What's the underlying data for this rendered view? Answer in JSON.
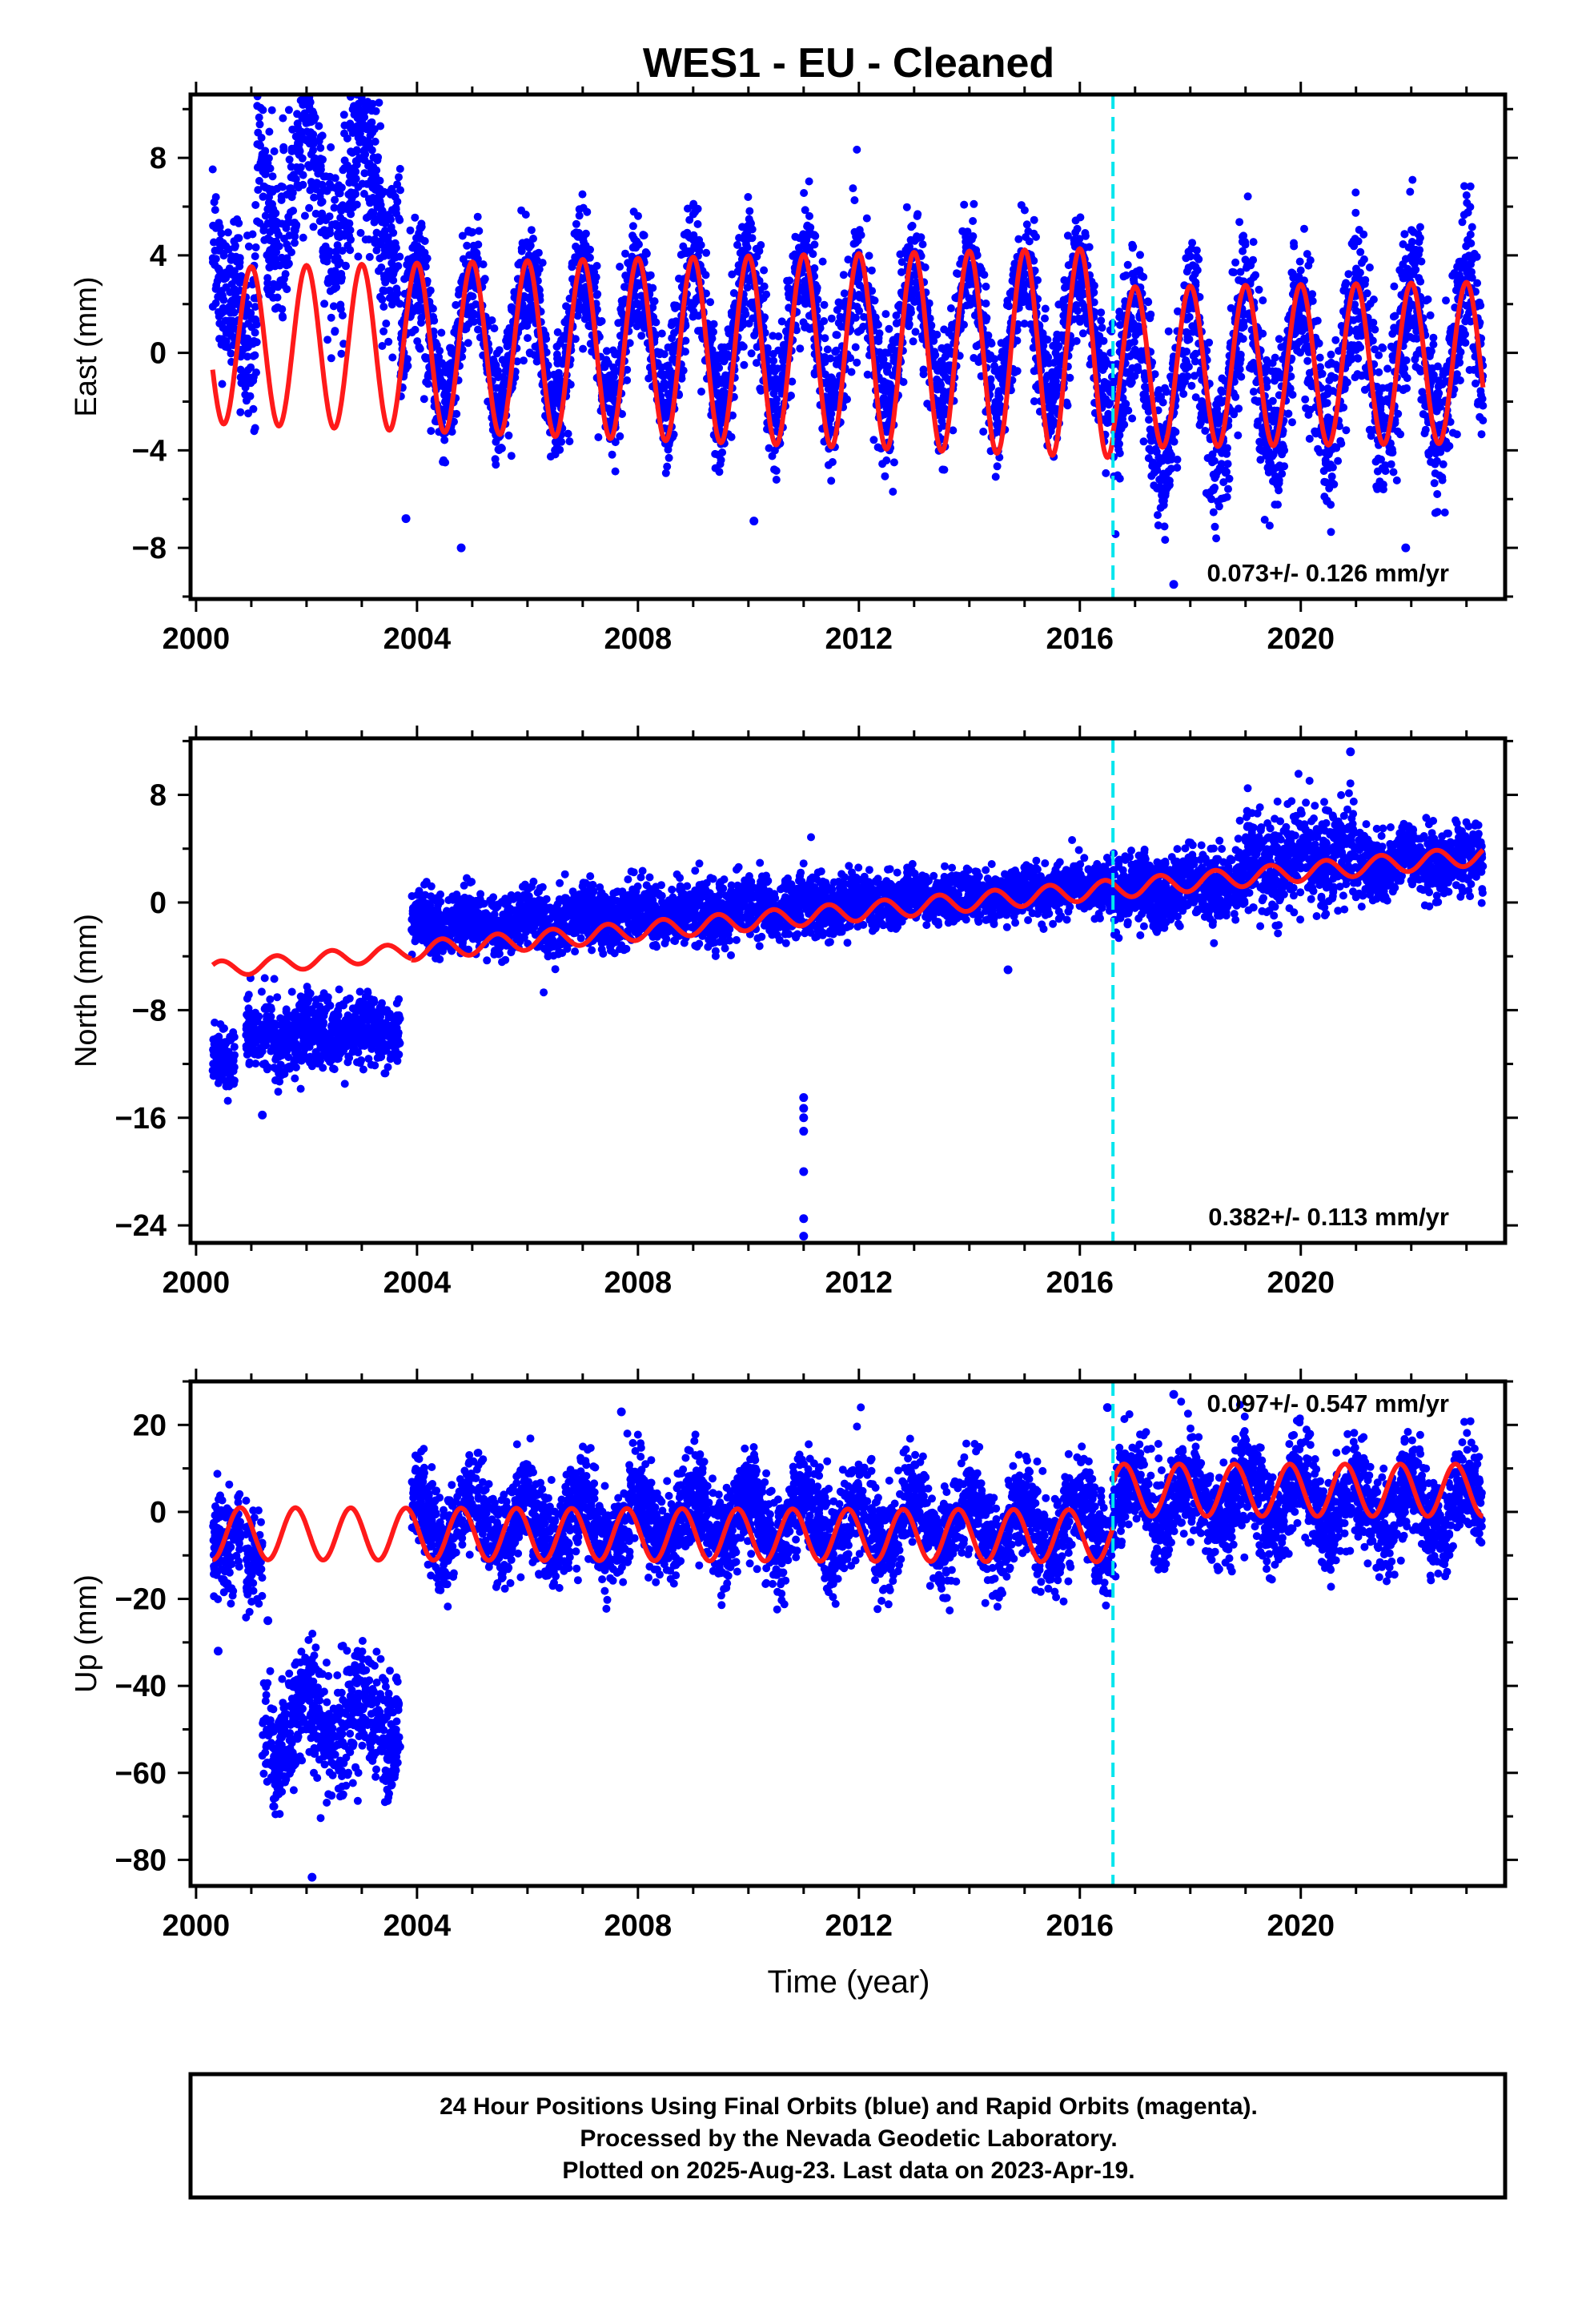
{
  "title": "WES1  - EU - Cleaned",
  "colors": {
    "points": "#0000ff",
    "model": "#ff1a1a",
    "event": "#00e5ee",
    "axis": "#000000"
  },
  "chart_data": [
    {
      "type": "scatter",
      "ylabel": "East (mm)",
      "xlim": [
        1999.9,
        2023.7
      ],
      "ylim": [
        -10.1,
        10.6
      ],
      "xticks": [
        2000,
        2004,
        2008,
        2012,
        2016,
        2020
      ],
      "yticks": [
        -8,
        -4,
        0,
        4,
        8
      ],
      "event_year": 2016.6,
      "rate_label": "0.073+/- 0.126 mm/yr",
      "rate_position": "bottom-right",
      "model": {
        "segments": [
          {
            "from": 2000.3,
            "to": 2016.6,
            "offset": [
              0.3,
              0.0
            ],
            "amp": [
              3.2,
              4.3
            ],
            "phase": 0.75
          },
          {
            "from": 2016.6,
            "to": 2023.3,
            "offset": [
              -0.6,
              -0.4
            ],
            "amp": [
              3.3,
              3.3
            ],
            "phase": 0.75
          }
        ],
        "note": "annual sinusoid"
      },
      "scatter_segments": [
        {
          "from": 2000.3,
          "to": 2000.8,
          "base": [
            5.0,
            3.0
          ],
          "noise": 1.5,
          "seasonal": 2.0
        },
        {
          "from": 2000.8,
          "to": 2001.1,
          "base": [
            0.0,
            0.0
          ],
          "noise": 1.8,
          "seasonal": 1.0
        },
        {
          "from": 2001.1,
          "to": 2003.7,
          "base": [
            6.5,
            6.5
          ],
          "noise": 1.7,
          "seasonal": 2.5
        },
        {
          "from": 2003.7,
          "to": 2016.6,
          "base": [
            0.5,
            0.8
          ],
          "noise": 1.3,
          "seasonal": 2.8
        },
        {
          "from": 2016.6,
          "to": 2023.3,
          "base": [
            -1.5,
            0.0
          ],
          "noise": 1.6,
          "seasonal": 3.0
        }
      ],
      "outliers": [
        [
          2004.8,
          -8.0
        ],
        [
          2017.7,
          -9.5
        ],
        [
          2021.9,
          -8.0
        ],
        [
          2003.8,
          -6.8
        ],
        [
          2010.1,
          -6.9
        ]
      ]
    },
    {
      "type": "scatter",
      "ylabel": "North (mm)",
      "xlim": [
        1999.9,
        2023.7
      ],
      "ylim": [
        -25.3,
        12.2
      ],
      "xticks": [
        2000,
        2004,
        2008,
        2012,
        2016,
        2020
      ],
      "yticks": [
        -24,
        -16,
        -8,
        0,
        8
      ],
      "event_year": 2016.6,
      "rate_label": "0.382+/- 0.113 mm/yr",
      "rate_position": "bottom-right",
      "model": {
        "segments": [
          {
            "from": 2000.3,
            "to": 2003.9,
            "offset": [
              -5.0,
              -3.6
            ],
            "amp": [
              0.6,
              0.6
            ],
            "phase": 0.2
          },
          {
            "from": 2003.9,
            "to": 2016.6,
            "offset": [
              -3.6,
              1.0
            ],
            "amp": [
              0.7,
              0.7
            ],
            "phase": 0.2
          },
          {
            "from": 2016.6,
            "to": 2023.3,
            "offset": [
              1.0,
              3.5
            ],
            "amp": [
              0.7,
              0.7
            ],
            "phase": 0.2
          }
        ],
        "note": "linear trend plus small annual term"
      },
      "scatter_segments": [
        {
          "from": 2000.3,
          "to": 2000.7,
          "base": [
            -11.5,
            -11.5
          ],
          "noise": 1.1,
          "seasonal": 0.3
        },
        {
          "from": 2000.9,
          "to": 2003.7,
          "base": [
            -10.0,
            -9.5
          ],
          "noise": 1.3,
          "seasonal": 0.5
        },
        {
          "from": 2003.9,
          "to": 2012.0,
          "base": [
            -1.8,
            0.0
          ],
          "noise": 1.1,
          "seasonal": 0.5
        },
        {
          "from": 2012.0,
          "to": 2016.6,
          "base": [
            0.0,
            1.2
          ],
          "noise": 0.9,
          "seasonal": 0.3
        },
        {
          "from": 2016.6,
          "to": 2019.0,
          "base": [
            0.8,
            1.5
          ],
          "noise": 1.3,
          "seasonal": 0.4
        },
        {
          "from": 2019.0,
          "to": 2021.0,
          "base": [
            3.0,
            3.5
          ],
          "noise": 1.8,
          "seasonal": 0.6
        },
        {
          "from": 2021.0,
          "to": 2023.3,
          "base": [
            3.0,
            3.0
          ],
          "noise": 1.2,
          "seasonal": 0.4
        }
      ],
      "outliers": [
        [
          2011.0,
          -14.5
        ],
        [
          2011.0,
          -15.3
        ],
        [
          2011.0,
          -16.0
        ],
        [
          2011.0,
          -17.0
        ],
        [
          2011.0,
          -20.0
        ],
        [
          2011.0,
          -23.5
        ],
        [
          2011.0,
          -24.8
        ],
        [
          2014.7,
          -5.0
        ],
        [
          2001.2,
          -15.8
        ],
        [
          2020.9,
          11.2
        ]
      ]
    },
    {
      "type": "scatter",
      "ylabel": "Up (mm)",
      "xlim": [
        1999.9,
        2023.7
      ],
      "ylim": [
        -86,
        30
      ],
      "xticks": [
        2000,
        2004,
        2008,
        2012,
        2016,
        2020
      ],
      "yticks": [
        -80,
        -60,
        -40,
        -20,
        0,
        20
      ],
      "xlabel": "Time (year)",
      "event_year": 2016.6,
      "rate_label": "0.097+/- 0.547 mm/yr",
      "rate_position": "top-right",
      "model": {
        "segments": [
          {
            "from": 2000.3,
            "to": 2016.6,
            "offset": [
              -5.0,
              -5.5
            ],
            "amp": [
              6.0,
              6.0
            ],
            "phase": 0.55
          },
          {
            "from": 2016.6,
            "to": 2023.3,
            "offset": [
              5.0,
              5.0
            ],
            "amp": [
              6.0,
              6.0
            ],
            "phase": 0.55
          }
        ],
        "note": "annual sinusoid with offset at event"
      },
      "scatter_segments": [
        {
          "from": 2000.3,
          "to": 2000.8,
          "base": [
            -5.0,
            -5.0
          ],
          "noise": 6.0,
          "seasonal": 3.0
        },
        {
          "from": 2000.9,
          "to": 2001.2,
          "base": [
            -12.0,
            -12.0
          ],
          "noise": 6.0,
          "seasonal": 2.0
        },
        {
          "from": 2001.2,
          "to": 2003.7,
          "base": [
            -50.0,
            -48.0
          ],
          "noise": 7.0,
          "seasonal": 6.0
        },
        {
          "from": 2003.9,
          "to": 2016.6,
          "base": [
            -2.0,
            -3.0
          ],
          "noise": 5.5,
          "seasonal": 6.0
        },
        {
          "from": 2016.6,
          "to": 2023.3,
          "base": [
            3.0,
            1.0
          ],
          "noise": 5.5,
          "seasonal": 6.0
        }
      ],
      "outliers": [
        [
          2000.4,
          -32.0
        ],
        [
          2002.1,
          -84.0
        ],
        [
          2007.7,
          23.0
        ],
        [
          2016.5,
          24.0
        ],
        [
          2017.7,
          27.0
        ],
        [
          2001.3,
          -25.0
        ]
      ]
    }
  ],
  "footer": {
    "line1": "24 Hour Positions Using Final Orbits (blue) and Rapid Orbits (magenta).",
    "line2": "Processed by the Nevada Geodetic Laboratory.",
    "line3": "Plotted on 2025-Aug-23. Last data on 2023-Apr-19."
  }
}
